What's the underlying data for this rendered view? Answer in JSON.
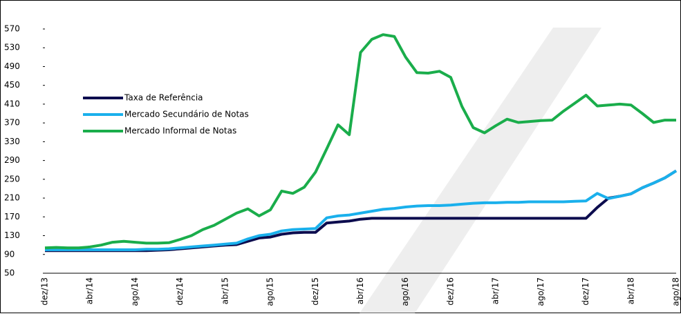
{
  "chart_data": {
    "type": "line",
    "categories": [
      "dez/13",
      null,
      null,
      null,
      "abr/14",
      null,
      null,
      null,
      "ago/14",
      null,
      null,
      null,
      "dez/14",
      null,
      null,
      null,
      "abr/15",
      null,
      null,
      null,
      "ago/15",
      null,
      null,
      null,
      "dez/15",
      null,
      null,
      null,
      "abr/16",
      null,
      null,
      null,
      "ago/16",
      null,
      null,
      null,
      "dez/16",
      null,
      null,
      null,
      "abr/17",
      null,
      null,
      null,
      "ago/17",
      null,
      null,
      null,
      "dez/17",
      null,
      null,
      null,
      "abr/18",
      null,
      null,
      null,
      "ago/18"
    ],
    "series": [
      {
        "name": "Taxa de Referência",
        "color": "#0c0c4e",
        "values": [
          98,
          98,
          98,
          98,
          98,
          98,
          98,
          98,
          98,
          98,
          99,
          100,
          102,
          104,
          106,
          108,
          110,
          111,
          118,
          125,
          127,
          133,
          136,
          137,
          137,
          157,
          159,
          161,
          165,
          167,
          167,
          167,
          167,
          167,
          167,
          167,
          167,
          167,
          167,
          167,
          167,
          167,
          167,
          167,
          167,
          167,
          167,
          167,
          167,
          190,
          210,
          214,
          219,
          232,
          242,
          253,
          268
        ]
      },
      {
        "name": "Mercado Secundário de Notas",
        "color": "#1ab0ec",
        "values": [
          100,
          100,
          100,
          100,
          100,
          100,
          100,
          100,
          100,
          101,
          101,
          102,
          104,
          106,
          108,
          110,
          112,
          114,
          123,
          130,
          133,
          140,
          143,
          144,
          145,
          168,
          172,
          174,
          178,
          182,
          186,
          188,
          191,
          193,
          194,
          194,
          195,
          197,
          199,
          200,
          200,
          201,
          201,
          202,
          202,
          202,
          202,
          203,
          204,
          220,
          209,
          214,
          219,
          232,
          242,
          253,
          268
        ]
      },
      {
        "name": "Mercado Informal de Notas",
        "color": "#1aad4b",
        "values": [
          104,
          105,
          104,
          104,
          106,
          110,
          116,
          118,
          116,
          114,
          114,
          115,
          122,
          130,
          143,
          152,
          165,
          178,
          187,
          172,
          185,
          225,
          220,
          233,
          265,
          315,
          366,
          345,
          520,
          548,
          558,
          554,
          510,
          477,
          476,
          480,
          467,
          405,
          360,
          349,
          364,
          378,
          371,
          373,
          375,
          376,
          395,
          412,
          429,
          406,
          408,
          410,
          408,
          390,
          371,
          376,
          376
        ]
      }
    ],
    "ylim": [
      50,
      570
    ],
    "yticks": [
      50,
      90,
      130,
      170,
      210,
      250,
      290,
      330,
      370,
      410,
      450,
      490,
      530,
      570
    ]
  }
}
